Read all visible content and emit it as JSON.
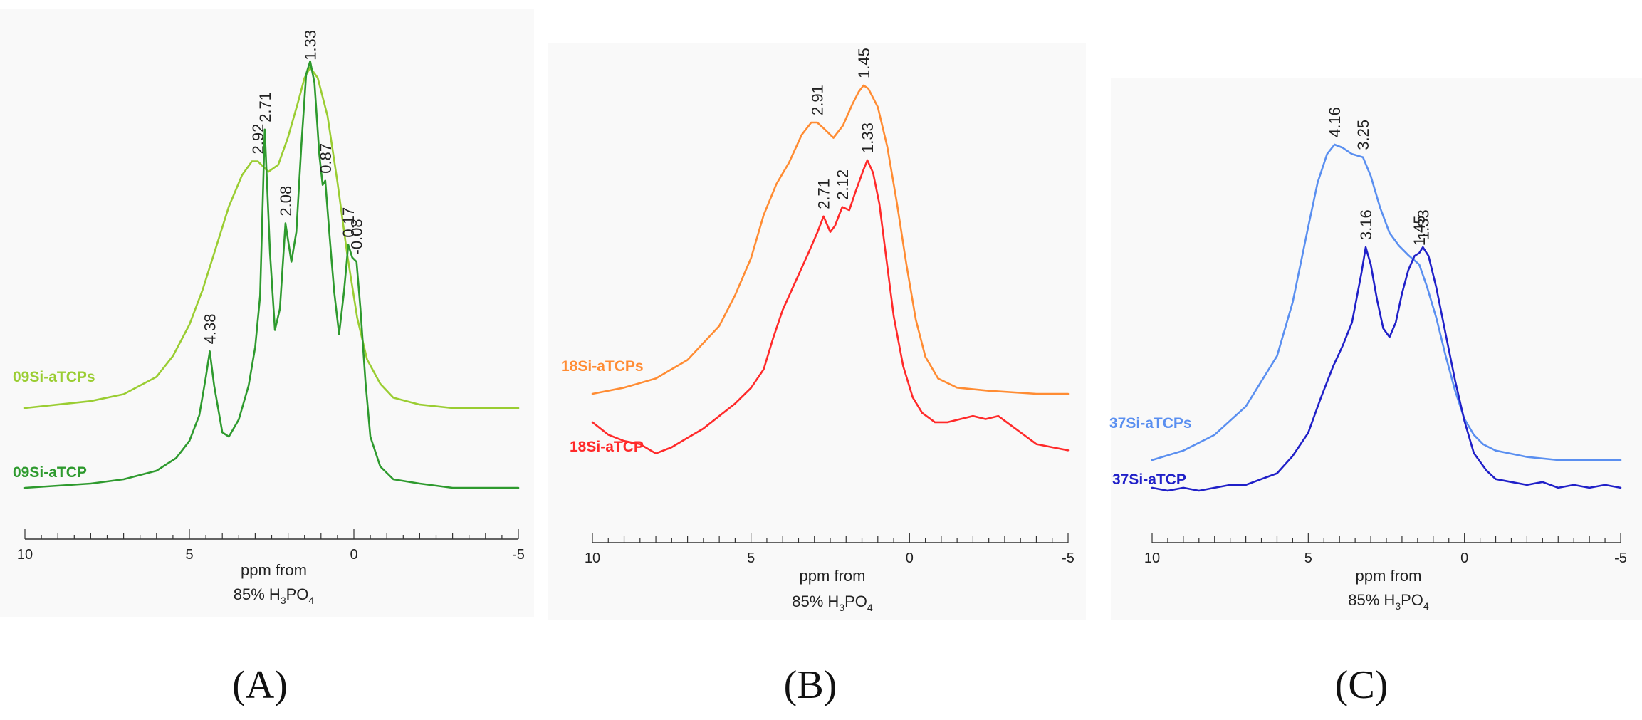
{
  "chart_data": [
    {
      "type": "line",
      "panel_label": "(A)",
      "xlabel": "ppm from",
      "xlabel2_prefix": "85% H",
      "xlabel2_sub1": "3",
      "xlabel2_mid": "PO",
      "xlabel2_sub2": "4",
      "xlim": [
        10,
        -5
      ],
      "x_ticks": [
        10,
        5,
        0,
        -5
      ],
      "series": [
        {
          "name": "09Si-aTCPs",
          "color": "#9acd32",
          "x": [
            10,
            9,
            8,
            7,
            6,
            5.5,
            5,
            4.6,
            4.2,
            3.8,
            3.4,
            3.1,
            2.92,
            2.6,
            2.3,
            2.0,
            1.7,
            1.5,
            1.33,
            1.1,
            0.8,
            0.5,
            0.2,
            -0.1,
            -0.4,
            -0.8,
            -1.2,
            -2,
            -3,
            -4,
            -5
          ],
          "y": [
            0.0,
            0.01,
            0.02,
            0.04,
            0.09,
            0.15,
            0.24,
            0.34,
            0.46,
            0.58,
            0.67,
            0.71,
            0.71,
            0.68,
            0.7,
            0.78,
            0.88,
            0.95,
            0.98,
            0.95,
            0.84,
            0.65,
            0.44,
            0.26,
            0.14,
            0.07,
            0.03,
            0.01,
            0.0,
            0.0,
            0.0
          ]
        },
        {
          "name": "09Si-aTCP",
          "color": "#2e9a2e",
          "x": [
            10,
            9,
            8,
            7,
            6,
            5.4,
            5.0,
            4.7,
            4.5,
            4.38,
            4.25,
            4.0,
            3.8,
            3.5,
            3.2,
            3.0,
            2.85,
            2.71,
            2.55,
            2.4,
            2.25,
            2.08,
            1.9,
            1.75,
            1.6,
            1.45,
            1.33,
            1.2,
            1.05,
            0.95,
            0.87,
            0.75,
            0.6,
            0.45,
            0.3,
            0.17,
            0.05,
            -0.08,
            -0.2,
            -0.35,
            -0.5,
            -0.8,
            -1.2,
            -2,
            -3,
            -4,
            -5
          ],
          "y": [
            0.0,
            0.005,
            0.01,
            0.02,
            0.04,
            0.07,
            0.11,
            0.17,
            0.26,
            0.32,
            0.24,
            0.13,
            0.12,
            0.16,
            0.24,
            0.33,
            0.45,
            0.84,
            0.55,
            0.37,
            0.42,
            0.62,
            0.53,
            0.6,
            0.8,
            0.97,
            1.0,
            0.95,
            0.78,
            0.71,
            0.72,
            0.6,
            0.46,
            0.36,
            0.46,
            0.57,
            0.54,
            0.53,
            0.42,
            0.25,
            0.12,
            0.05,
            0.02,
            0.01,
            0.0,
            0.0,
            0.0
          ]
        }
      ],
      "peak_labels": [
        {
          "series": 0,
          "x": 2.92,
          "text": "2.92"
        },
        {
          "series": 0,
          "x": 1.33,
          "text": "1.33"
        },
        {
          "series": 1,
          "x": 2.71,
          "text": "2.71"
        },
        {
          "series": 1,
          "x": 2.08,
          "text": "2.08"
        },
        {
          "series": 1,
          "x": 0.87,
          "text": "0.87"
        },
        {
          "series": 1,
          "x": 0.17,
          "text": "0.17"
        },
        {
          "series": 1,
          "x": -0.08,
          "text": "-0.08"
        },
        {
          "series": 1,
          "x": 4.38,
          "text": "4.38"
        }
      ]
    },
    {
      "type": "line",
      "panel_label": "(B)",
      "xlabel": "ppm from",
      "xlabel2_prefix": "85% H",
      "xlabel2_sub1": "3",
      "xlabel2_mid": "PO",
      "xlabel2_sub2": "4",
      "xlim": [
        10,
        -5
      ],
      "x_ticks": [
        10,
        5,
        0,
        -5
      ],
      "series": [
        {
          "name": "18Si-aTCPs",
          "color": "#ff8c33",
          "x": [
            10,
            9,
            8,
            7,
            6,
            5.5,
            5,
            4.6,
            4.2,
            3.8,
            3.4,
            3.1,
            2.91,
            2.7,
            2.4,
            2.1,
            1.8,
            1.6,
            1.45,
            1.3,
            1.0,
            0.7,
            0.4,
            0.1,
            -0.2,
            -0.5,
            -0.9,
            -1.5,
            -2.5,
            -4,
            -5
          ],
          "y": [
            0.0,
            0.02,
            0.05,
            0.11,
            0.22,
            0.32,
            0.44,
            0.58,
            0.68,
            0.75,
            0.84,
            0.88,
            0.88,
            0.86,
            0.83,
            0.87,
            0.94,
            0.98,
            1.0,
            0.99,
            0.93,
            0.8,
            0.62,
            0.42,
            0.24,
            0.12,
            0.05,
            0.02,
            0.01,
            0.0,
            0.0
          ]
        },
        {
          "name": "18Si-aTCP",
          "color": "#ff2a2a",
          "x": [
            10,
            9.5,
            9,
            8.5,
            8,
            7.5,
            7,
            6.5,
            6,
            5.5,
            5,
            4.6,
            4.3,
            4.0,
            3.6,
            3.2,
            2.9,
            2.71,
            2.5,
            2.35,
            2.2,
            2.12,
            1.9,
            1.7,
            1.45,
            1.33,
            1.15,
            0.95,
            0.75,
            0.5,
            0.2,
            -0.1,
            -0.4,
            -0.8,
            -1.2,
            -1.6,
            -2.0,
            -2.4,
            -2.8,
            -3.2,
            -3.6,
            -4.0,
            -4.5,
            -5
          ],
          "y": [
            0.16,
            0.12,
            0.1,
            0.09,
            0.06,
            0.08,
            0.11,
            0.14,
            0.18,
            0.22,
            0.27,
            0.33,
            0.43,
            0.52,
            0.61,
            0.7,
            0.77,
            0.82,
            0.77,
            0.79,
            0.83,
            0.85,
            0.84,
            0.9,
            0.97,
            1.0,
            0.96,
            0.86,
            0.7,
            0.5,
            0.34,
            0.24,
            0.19,
            0.16,
            0.16,
            0.17,
            0.18,
            0.17,
            0.18,
            0.15,
            0.12,
            0.09,
            0.08,
            0.07
          ]
        }
      ],
      "peak_labels": [
        {
          "series": 0,
          "x": 2.91,
          "text": "2.91"
        },
        {
          "series": 0,
          "x": 1.45,
          "text": "1.45"
        },
        {
          "series": 1,
          "x": 2.71,
          "text": "2.71"
        },
        {
          "series": 1,
          "x": 2.12,
          "text": "2.12"
        },
        {
          "series": 1,
          "x": 1.33,
          "text": "1.33"
        }
      ]
    },
    {
      "type": "line",
      "panel_label": "(C)",
      "xlabel": "ppm from",
      "xlabel2_prefix": "85% H",
      "xlabel2_sub1": "3",
      "xlabel2_mid": "PO",
      "xlabel2_sub2": "4",
      "xlim": [
        10,
        -5
      ],
      "x_ticks": [
        10,
        5,
        0,
        -5
      ],
      "series": [
        {
          "name": "37Si-aTCPs",
          "color": "#5a8ff0",
          "x": [
            10,
            9,
            8,
            7,
            6,
            5.5,
            5,
            4.7,
            4.4,
            4.16,
            3.9,
            3.6,
            3.25,
            3.0,
            2.7,
            2.4,
            2.1,
            1.8,
            1.45,
            1.2,
            0.9,
            0.6,
            0.3,
            0.0,
            -0.3,
            -0.6,
            -1.0,
            -1.5,
            -2,
            -3,
            -4,
            -5
          ],
          "y": [
            0.0,
            0.03,
            0.08,
            0.17,
            0.33,
            0.5,
            0.74,
            0.88,
            0.97,
            1.0,
            0.99,
            0.97,
            0.96,
            0.9,
            0.8,
            0.72,
            0.68,
            0.65,
            0.62,
            0.55,
            0.45,
            0.33,
            0.22,
            0.13,
            0.08,
            0.05,
            0.03,
            0.02,
            0.01,
            0.0,
            0.0,
            0.0
          ]
        },
        {
          "name": "37Si-aTCP",
          "color": "#2020c8",
          "x": [
            10,
            9.5,
            9,
            8.5,
            8,
            7.5,
            7,
            6.5,
            6,
            5.5,
            5,
            4.6,
            4.2,
            3.9,
            3.6,
            3.3,
            3.16,
            3.0,
            2.8,
            2.6,
            2.4,
            2.2,
            2.0,
            1.8,
            1.6,
            1.45,
            1.33,
            1.15,
            0.9,
            0.6,
            0.3,
            0.0,
            -0.3,
            -0.7,
            -1.0,
            -1.5,
            -2,
            -2.5,
            -3,
            -3.5,
            -4,
            -4.5,
            -5
          ],
          "y": [
            0.01,
            0.0,
            0.01,
            0.0,
            0.01,
            0.02,
            0.02,
            0.04,
            0.06,
            0.12,
            0.2,
            0.32,
            0.43,
            0.5,
            0.58,
            0.75,
            0.84,
            0.78,
            0.66,
            0.56,
            0.53,
            0.58,
            0.68,
            0.76,
            0.81,
            0.82,
            0.84,
            0.81,
            0.7,
            0.54,
            0.38,
            0.24,
            0.13,
            0.07,
            0.04,
            0.03,
            0.02,
            0.03,
            0.01,
            0.02,
            0.01,
            0.02,
            0.01
          ]
        }
      ],
      "peak_labels": [
        {
          "series": 0,
          "x": 4.16,
          "text": "4.16"
        },
        {
          "series": 0,
          "x": 3.25,
          "text": "3.25"
        },
        {
          "series": 1,
          "x": 3.16,
          "text": "3.16"
        },
        {
          "series": 1,
          "x": 1.45,
          "text": "1.45"
        },
        {
          "series": 1,
          "x": 1.33,
          "text": "1.33"
        }
      ]
    }
  ]
}
